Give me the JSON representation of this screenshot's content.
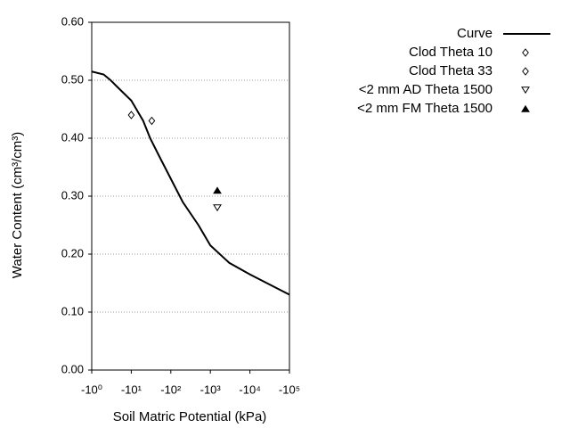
{
  "chart_data": {
    "type": "line-scatter",
    "x_label": "Soil Matric Potential (kPa)",
    "y_label": "Water Content (cm³/cm³)",
    "xscale": "log",
    "xlim": [
      -1,
      -100000
    ],
    "xticks": [
      {
        "value": -1,
        "label": "-10⁰"
      },
      {
        "value": -10,
        "label": "-10¹"
      },
      {
        "value": -100,
        "label": "-10²"
      },
      {
        "value": -1000,
        "label": "-10³"
      },
      {
        "value": -10000,
        "label": "-10⁴"
      },
      {
        "value": -100000,
        "label": "-10⁵"
      }
    ],
    "ylim": [
      0,
      0.6
    ],
    "yticks": [
      {
        "value": 0,
        "label": "0.00"
      },
      {
        "value": 0.1,
        "label": "0.10"
      },
      {
        "value": 0.2,
        "label": "0.20"
      },
      {
        "value": 0.3,
        "label": "0.30"
      },
      {
        "value": 0.4,
        "label": "0.40"
      },
      {
        "value": 0.5,
        "label": "0.50"
      },
      {
        "value": 0.6,
        "label": "0.60"
      }
    ],
    "grid": true,
    "legend": "right",
    "series": [
      {
        "name": "Curve",
        "color": "#000000",
        "marker": "line",
        "x": [
          -1,
          -2,
          -3,
          -5,
          -10,
          -20,
          -30,
          -50,
          -100,
          -200,
          -500,
          -1000,
          -3000,
          -10000,
          -100000
        ],
        "values": [
          0.515,
          0.51,
          0.5,
          0.485,
          0.465,
          0.43,
          0.4,
          0.37,
          0.33,
          0.29,
          0.25,
          0.215,
          0.185,
          0.165,
          0.13
        ]
      },
      {
        "name": "Clod Theta 10",
        "color": "#000000",
        "marker": "diamond",
        "x": [
          -10
        ],
        "values": [
          0.44
        ]
      },
      {
        "name": "Clod Theta 33",
        "color": "#000000",
        "marker": "diamond",
        "x": [
          -33
        ],
        "values": [
          0.43
        ]
      },
      {
        "name": "<2 mm AD Theta 1500",
        "color": "#000000",
        "marker": "triangle-down",
        "x": [
          -1500
        ],
        "values": [
          0.28
        ]
      },
      {
        "name": "<2 mm FM Theta 1500",
        "color": "#000000",
        "marker": "triangle-up",
        "x": [
          -1500
        ],
        "values": [
          0.31
        ]
      }
    ]
  }
}
